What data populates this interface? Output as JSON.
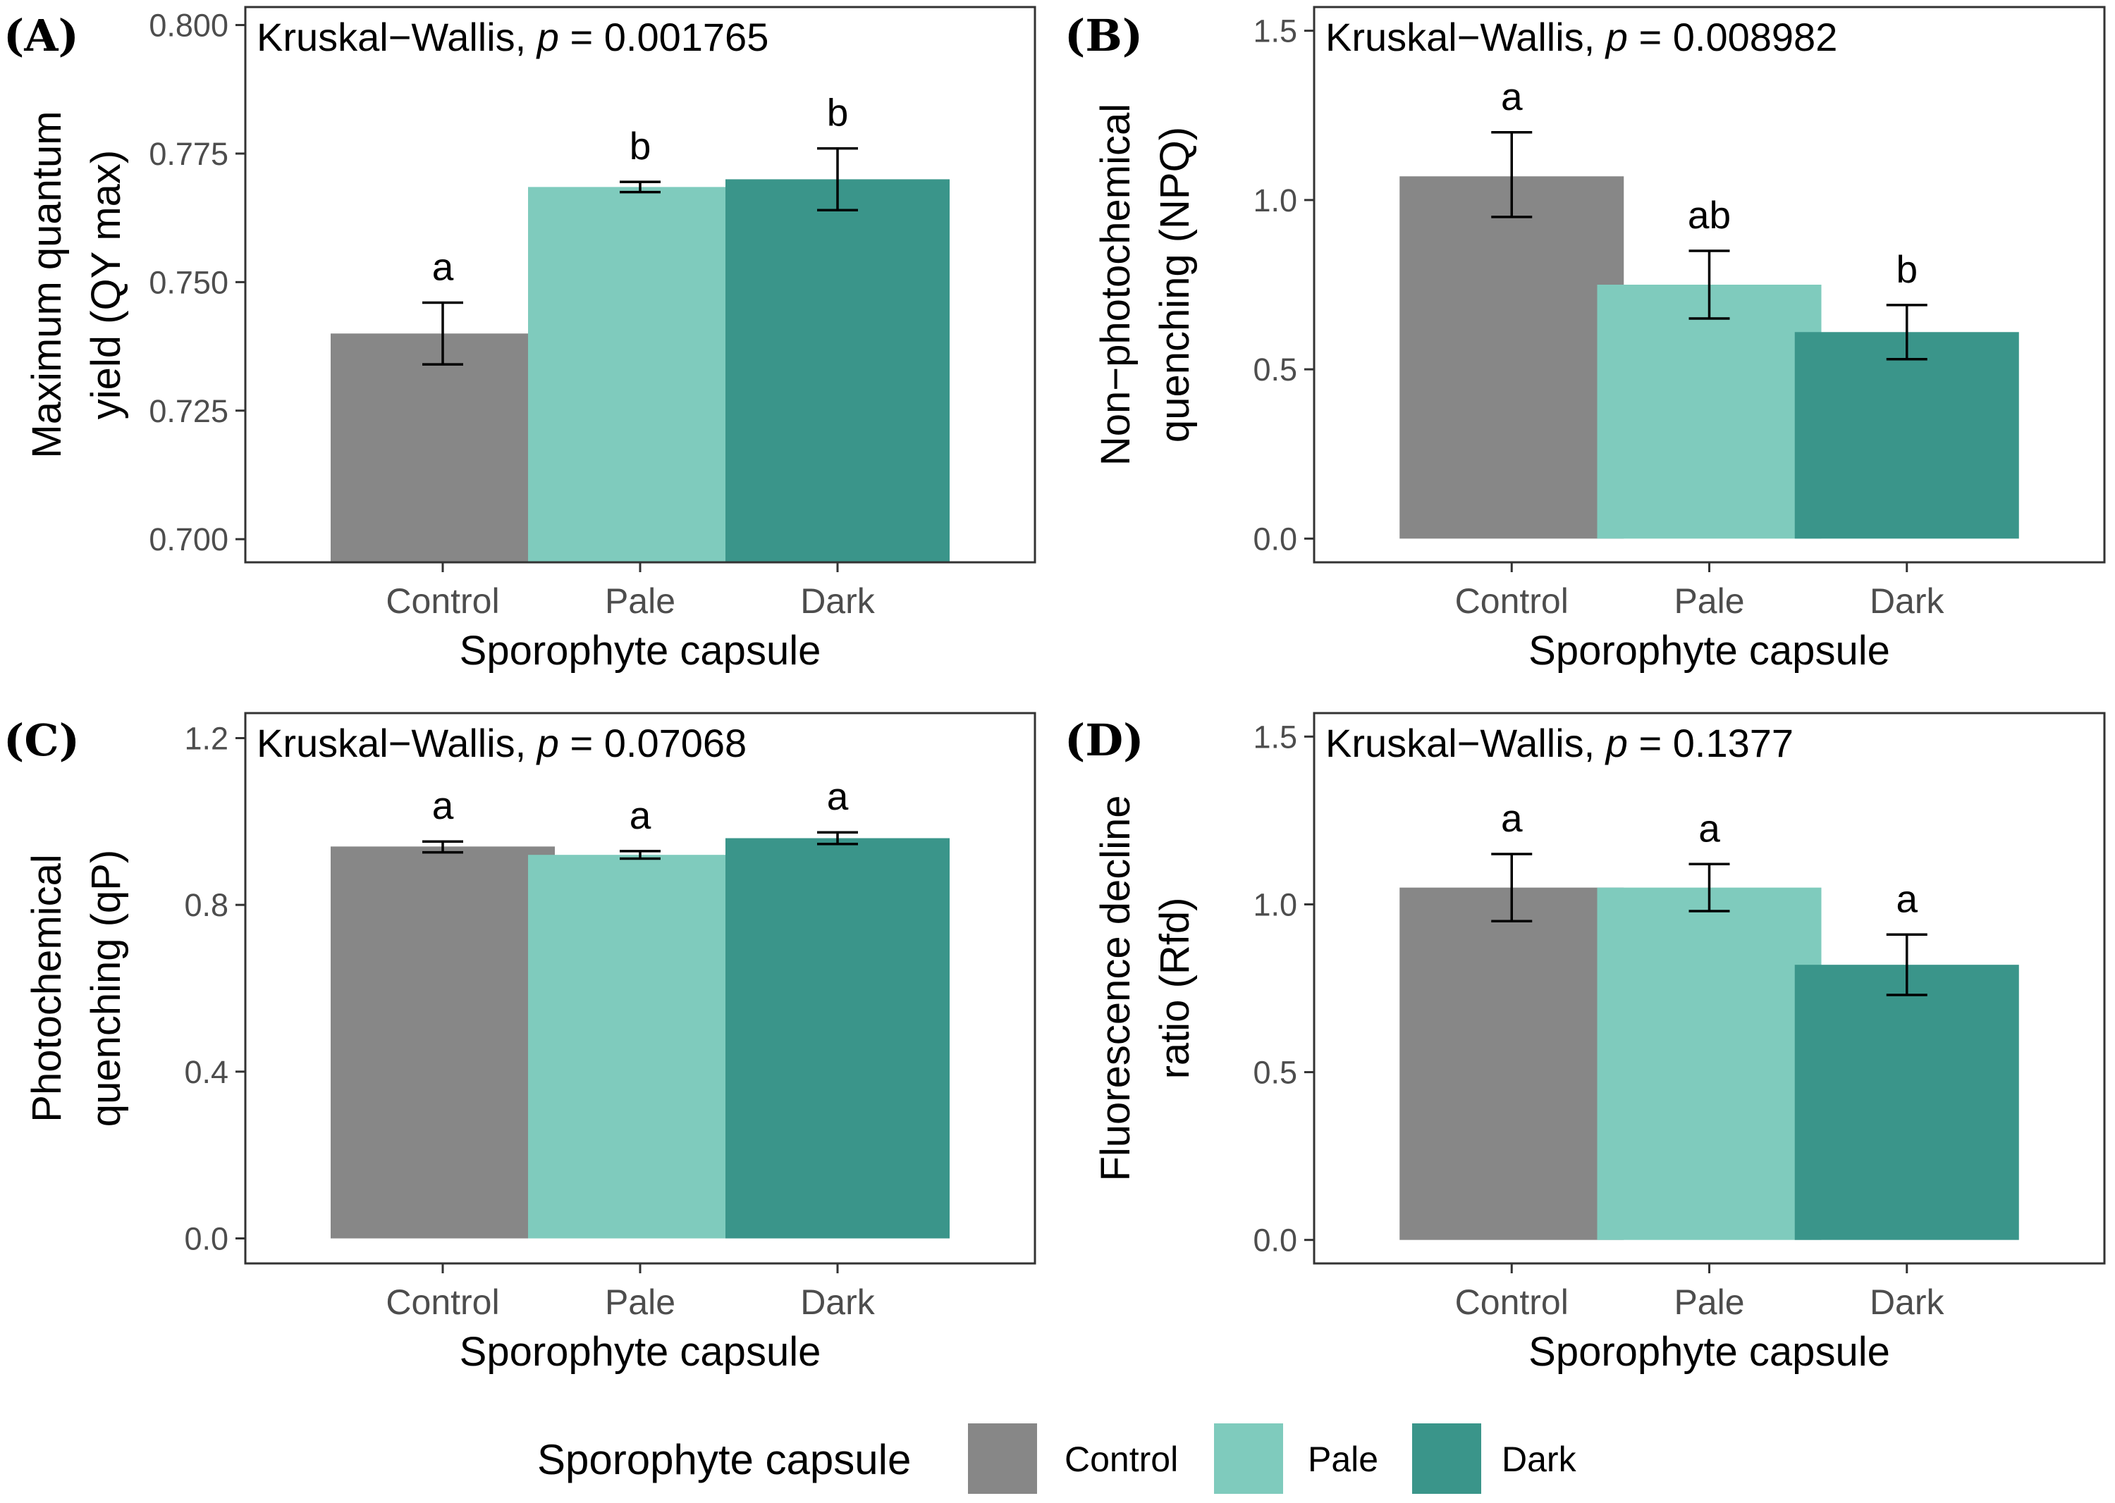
{
  "colors": {
    "control": "#878787",
    "pale": "#7fcbbd",
    "dark": "#3a958a",
    "axis_text": "#4d4d4d",
    "text": "#000000",
    "frame": "#333333"
  },
  "legend": {
    "title": "Sporophyte capsule",
    "items": [
      {
        "label": "Control",
        "color_key": "control"
      },
      {
        "label": "Pale",
        "color_key": "pale"
      },
      {
        "label": "Dark",
        "color_key": "dark"
      }
    ]
  },
  "chart_data": [
    {
      "type": "bar",
      "panel_label": "(A)",
      "title_prefix": "Kruskal−Wallis, ",
      "title_p": "p",
      "title_suffix": " = 0.001765",
      "categories": [
        "Control",
        "Pale",
        "Dark"
      ],
      "values": [
        0.74,
        0.7685,
        0.77
      ],
      "err_low": [
        0.734,
        0.7675,
        0.764
      ],
      "err_high": [
        0.746,
        0.7695,
        0.776
      ],
      "letters": [
        "a",
        "b",
        "b"
      ],
      "ylim": [
        0.6955,
        0.8035
      ],
      "bar_base": 0.6955,
      "yticks": [
        0.7,
        0.725,
        0.75,
        0.775,
        0.8
      ],
      "ytick_labels": [
        "0.700",
        "0.725",
        "0.750",
        "0.775",
        "0.800"
      ],
      "ylabel_lines": [
        "Maximum quantum",
        "yield (QY max)"
      ],
      "xlabel": "Sporophyte capsule"
    },
    {
      "type": "bar",
      "panel_label": "(B)",
      "title_prefix": "Kruskal−Wallis, ",
      "title_p": "p",
      "title_suffix": " = 0.008982",
      "categories": [
        "Control",
        "Pale",
        "Dark"
      ],
      "values": [
        1.07,
        0.75,
        0.61
      ],
      "err_low": [
        0.95,
        0.65,
        0.53
      ],
      "err_high": [
        1.2,
        0.85,
        0.69
      ],
      "letters": [
        "a",
        "ab",
        "b"
      ],
      "ylim": [
        -0.07,
        1.57
      ],
      "bar_base": 0,
      "yticks": [
        0.0,
        0.5,
        1.0,
        1.5
      ],
      "ytick_labels": [
        "0.0",
        "0.5",
        "1.0",
        "1.5"
      ],
      "ylabel_lines": [
        "Non−photochemical",
        "quenching (NPQ)"
      ],
      "xlabel": "Sporophyte capsule"
    },
    {
      "type": "bar",
      "panel_label": "(C)",
      "title_prefix": "Kruskal−Wallis, ",
      "title_p": "p",
      "title_suffix": " = 0.07068",
      "categories": [
        "Control",
        "Pale",
        "Dark"
      ],
      "values": [
        0.94,
        0.92,
        0.96
      ],
      "err_low": [
        0.926,
        0.911,
        0.946
      ],
      "err_high": [
        0.952,
        0.929,
        0.974
      ],
      "letters": [
        "a",
        "a",
        "a"
      ],
      "ylim": [
        -0.06,
        1.26
      ],
      "bar_base": 0,
      "yticks": [
        0.0,
        0.4,
        0.8,
        1.2
      ],
      "ytick_labels": [
        "0.0",
        "0.4",
        "0.8",
        "1.2"
      ],
      "ylabel_lines": [
        "Photochemical",
        "quenching (qP)"
      ],
      "xlabel": "Sporophyte capsule"
    },
    {
      "type": "bar",
      "panel_label": "(D)",
      "title_prefix": "Kruskal−Wallis, ",
      "title_p": "p",
      "title_suffix": " = 0.1377",
      "categories": [
        "Control",
        "Pale",
        "Dark"
      ],
      "values": [
        1.05,
        1.05,
        0.82
      ],
      "err_low": [
        0.95,
        0.98,
        0.73
      ],
      "err_high": [
        1.15,
        1.12,
        0.91
      ],
      "letters": [
        "a",
        "a",
        "a"
      ],
      "ylim": [
        -0.07,
        1.57
      ],
      "bar_base": 0,
      "yticks": [
        0.0,
        0.5,
        1.0,
        1.5
      ],
      "ytick_labels": [
        "0.0",
        "0.5",
        "1.0",
        "1.5"
      ],
      "ylabel_lines": [
        "Fluorescence decline",
        "ratio (Rfd)"
      ],
      "xlabel": "Sporophyte capsule"
    }
  ]
}
